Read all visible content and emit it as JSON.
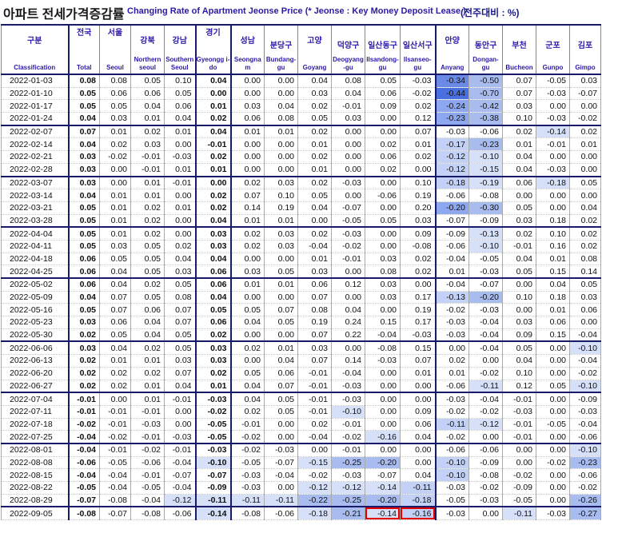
{
  "title": {
    "korean": "아파트 전세가격증감률",
    "english": "Changing Rate of Apartment Jeonse Price (* Jeonse : Key Money Deposit Lease )",
    "unit": "(전주대비 : %)"
  },
  "columns": [
    {
      "ko": "구분",
      "en": "Classification"
    },
    {
      "ko": "전국",
      "en": "Total"
    },
    {
      "ko": "서울",
      "en": "Seoul"
    },
    {
      "ko": "강북",
      "en": "Northern seoul"
    },
    {
      "ko": "강남",
      "en": "Southern Seoul"
    },
    {
      "ko": "경기",
      "en": "Gyeongg i-do"
    },
    {
      "ko": "성남",
      "en": "Seongna m"
    },
    {
      "ko": "분당구",
      "en": "Bundang-gu"
    },
    {
      "ko": "고양",
      "en": "Goyang"
    },
    {
      "ko": "덕양구",
      "en": "Deogyang -gu"
    },
    {
      "ko": "일산동구",
      "en": "Ilsandong-gu"
    },
    {
      "ko": "일산서구",
      "en": "Ilsanseo-gu"
    },
    {
      "ko": "안양",
      "en": "Anyang"
    },
    {
      "ko": "동안구",
      "en": "Dongan-gu"
    },
    {
      "ko": "부천",
      "en": "Bucheon"
    },
    {
      "ko": "군포",
      "en": "Gunpo"
    },
    {
      "ko": "김포",
      "en": "Gimpo"
    }
  ],
  "rows": [
    {
      "date": "2022-01-03",
      "values": [
        "0.08",
        "0.08",
        "0.05",
        "0.10",
        "0.04",
        "0.00",
        "0.00",
        "0.04",
        "0.08",
        "0.05",
        "-0.03",
        "-0.34",
        "-0.50",
        "0.07",
        "-0.05",
        "0.03"
      ]
    },
    {
      "date": "2022-01-10",
      "values": [
        "0.05",
        "0.06",
        "0.06",
        "0.05",
        "0.00",
        "0.00",
        "0.00",
        "0.03",
        "0.04",
        "0.06",
        "-0.02",
        "-0.44",
        "-0.70",
        "0.07",
        "-0.03",
        "-0.07"
      ]
    },
    {
      "date": "2022-01-17",
      "values": [
        "0.05",
        "0.05",
        "0.04",
        "0.06",
        "0.01",
        "0.03",
        "0.04",
        "0.02",
        "-0.01",
        "0.09",
        "0.02",
        "-0.24",
        "-0.42",
        "0.03",
        "0.00",
        "0.00"
      ]
    },
    {
      "date": "2022-01-24",
      "values": [
        "0.04",
        "0.03",
        "0.01",
        "0.04",
        "0.02",
        "0.06",
        "0.08",
        "0.05",
        "0.03",
        "0.00",
        "0.12",
        "-0.23",
        "-0.38",
        "0.10",
        "-0.03",
        "-0.02"
      ]
    },
    {
      "date": "2022-02-07",
      "values": [
        "0.07",
        "0.01",
        "0.02",
        "0.01",
        "0.04",
        "0.01",
        "0.01",
        "0.02",
        "0.00",
        "0.00",
        "0.07",
        "-0.03",
        "-0.06",
        "0.02",
        "-0.14",
        "0.02"
      ]
    },
    {
      "date": "2022-02-14",
      "values": [
        "0.04",
        "0.02",
        "0.03",
        "0.00",
        "-0.01",
        "0.00",
        "0.00",
        "0.01",
        "0.00",
        "0.02",
        "0.01",
        "-0.17",
        "-0.23",
        "0.01",
        "-0.01",
        "0.01"
      ]
    },
    {
      "date": "2022-02-21",
      "values": [
        "0.03",
        "-0.02",
        "-0.01",
        "-0.03",
        "0.02",
        "0.00",
        "0.00",
        "0.02",
        "0.00",
        "0.06",
        "0.02",
        "-0.12",
        "-0.10",
        "0.04",
        "0.00",
        "0.00"
      ]
    },
    {
      "date": "2022-02-28",
      "values": [
        "0.03",
        "0.00",
        "-0.01",
        "0.01",
        "0.01",
        "0.00",
        "0.00",
        "0.01",
        "0.00",
        "0.02",
        "0.00",
        "-0.12",
        "-0.15",
        "0.04",
        "-0.03",
        "0.00"
      ]
    },
    {
      "date": "2022-03-07",
      "values": [
        "0.03",
        "0.00",
        "0.01",
        "-0.01",
        "0.00",
        "0.02",
        "0.03",
        "0.02",
        "-0.03",
        "0.00",
        "0.10",
        "-0.18",
        "-0.19",
        "0.06",
        "-0.18",
        "0.05"
      ]
    },
    {
      "date": "2022-03-14",
      "values": [
        "0.04",
        "0.01",
        "0.01",
        "0.00",
        "0.02",
        "0.07",
        "0.10",
        "0.05",
        "0.00",
        "-0.06",
        "0.19",
        "-0.06",
        "-0.08",
        "0.00",
        "0.00",
        "0.00"
      ]
    },
    {
      "date": "2022-03-21",
      "values": [
        "0.05",
        "0.01",
        "0.02",
        "0.01",
        "0.02",
        "0.14",
        "0.19",
        "0.04",
        "-0.07",
        "0.00",
        "0.20",
        "-0.20",
        "-0.30",
        "0.05",
        "0.00",
        "0.04"
      ]
    },
    {
      "date": "2022-03-28",
      "values": [
        "0.05",
        "0.01",
        "0.02",
        "0.00",
        "0.04",
        "0.01",
        "0.01",
        "0.00",
        "-0.05",
        "0.05",
        "0.03",
        "-0.07",
        "-0.09",
        "0.03",
        "0.18",
        "0.02"
      ]
    },
    {
      "date": "2022-04-04",
      "values": [
        "0.05",
        "0.01",
        "0.02",
        "0.00",
        "0.03",
        "0.02",
        "0.03",
        "0.02",
        "-0.03",
        "0.00",
        "0.09",
        "-0.09",
        "-0.13",
        "0.02",
        "0.10",
        "0.02"
      ]
    },
    {
      "date": "2022-04-11",
      "values": [
        "0.05",
        "0.03",
        "0.05",
        "0.02",
        "0.03",
        "0.02",
        "0.03",
        "-0.04",
        "-0.02",
        "0.00",
        "-0.08",
        "-0.06",
        "-0.10",
        "-0.01",
        "0.16",
        "0.02"
      ]
    },
    {
      "date": "2022-04-18",
      "values": [
        "0.06",
        "0.05",
        "0.05",
        "0.04",
        "0.04",
        "0.00",
        "0.00",
        "0.01",
        "-0.01",
        "0.03",
        "0.02",
        "-0.04",
        "-0.05",
        "0.04",
        "0.01",
        "0.08"
      ]
    },
    {
      "date": "2022-04-25",
      "values": [
        "0.06",
        "0.04",
        "0.05",
        "0.03",
        "0.06",
        "0.03",
        "0.05",
        "0.03",
        "0.00",
        "0.08",
        "0.02",
        "0.01",
        "-0.03",
        "0.05",
        "0.15",
        "0.14"
      ]
    },
    {
      "date": "2022-05-02",
      "values": [
        "0.06",
        "0.04",
        "0.02",
        "0.05",
        "0.06",
        "0.01",
        "0.01",
        "0.06",
        "0.12",
        "0.03",
        "0.00",
        "-0.04",
        "-0.07",
        "0.00",
        "0.04",
        "0.05"
      ]
    },
    {
      "date": "2022-05-09",
      "values": [
        "0.04",
        "0.07",
        "0.05",
        "0.08",
        "0.04",
        "0.00",
        "0.00",
        "0.07",
        "0.00",
        "0.03",
        "0.17",
        "-0.13",
        "-0.20",
        "0.10",
        "0.18",
        "0.03"
      ]
    },
    {
      "date": "2022-05-16",
      "values": [
        "0.05",
        "0.07",
        "0.06",
        "0.07",
        "0.05",
        "0.05",
        "0.07",
        "0.08",
        "0.04",
        "0.00",
        "0.19",
        "-0.02",
        "-0.03",
        "0.00",
        "0.01",
        "0.06"
      ]
    },
    {
      "date": "2022-05-23",
      "values": [
        "0.03",
        "0.06",
        "0.04",
        "0.07",
        "0.06",
        "0.04",
        "0.05",
        "0.19",
        "0.24",
        "0.15",
        "0.17",
        "-0.03",
        "-0.04",
        "0.03",
        "0.06",
        "0.00"
      ]
    },
    {
      "date": "2022-05-30",
      "values": [
        "0.02",
        "0.05",
        "0.04",
        "0.05",
        "0.02",
        "0.00",
        "0.00",
        "0.07",
        "0.22",
        "-0.04",
        "-0.03",
        "-0.03",
        "-0.04",
        "0.09",
        "0.15",
        "-0.04"
      ]
    },
    {
      "date": "2022-06-06",
      "values": [
        "0.03",
        "0.04",
        "0.02",
        "0.05",
        "0.03",
        "0.02",
        "0.01",
        "0.03",
        "0.00",
        "-0.08",
        "0.15",
        "0.00",
        "-0.04",
        "0.05",
        "0.00",
        "-0.10"
      ]
    },
    {
      "date": "2022-06-13",
      "values": [
        "0.02",
        "0.01",
        "0.01",
        "0.03",
        "0.03",
        "0.00",
        "0.04",
        "0.07",
        "0.14",
        "-0.03",
        "0.07",
        "0.02",
        "0.00",
        "0.04",
        "0.00",
        "-0.04"
      ]
    },
    {
      "date": "2022-06-20",
      "values": [
        "0.02",
        "0.02",
        "0.02",
        "0.07",
        "0.02",
        "0.05",
        "0.06",
        "-0.01",
        "-0.04",
        "0.00",
        "0.01",
        "0.01",
        "-0.02",
        "0.10",
        "0.00",
        "-0.02"
      ]
    },
    {
      "date": "2022-06-27",
      "values": [
        "0.02",
        "0.02",
        "0.01",
        "0.04",
        "0.01",
        "0.04",
        "0.07",
        "-0.01",
        "-0.03",
        "0.00",
        "0.00",
        "-0.06",
        "-0.11",
        "0.12",
        "0.05",
        "-0.10"
      ]
    },
    {
      "date": "2022-07-04",
      "values": [
        "-0.01",
        "0.00",
        "0.01",
        "-0.01",
        "-0.03",
        "0.04",
        "0.05",
        "-0.01",
        "-0.03",
        "0.00",
        "0.00",
        "-0.03",
        "-0.04",
        "-0.01",
        "0.00",
        "-0.09"
      ]
    },
    {
      "date": "2022-07-11",
      "values": [
        "-0.01",
        "-0.01",
        "-0.01",
        "0.00",
        "-0.02",
        "0.02",
        "0.05",
        "-0.01",
        "-0.10",
        "0.00",
        "0.09",
        "-0.02",
        "-0.02",
        "-0.03",
        "0.00",
        "-0.03"
      ]
    },
    {
      "date": "2022-07-18",
      "values": [
        "-0.02",
        "-0.01",
        "-0.03",
        "0.00",
        "-0.05",
        "-0.01",
        "0.00",
        "0.02",
        "-0.01",
        "0.00",
        "0.06",
        "-0.11",
        "-0.12",
        "-0.01",
        "-0.05",
        "-0.04"
      ]
    },
    {
      "date": "2022-07-25",
      "values": [
        "-0.04",
        "-0.02",
        "-0.01",
        "-0.03",
        "-0.05",
        "-0.02",
        "0.00",
        "-0.04",
        "-0.02",
        "-0.16",
        "0.04",
        "-0.02",
        "0.00",
        "-0.01",
        "0.00",
        "-0.06"
      ]
    },
    {
      "date": "2022-08-01",
      "values": [
        "-0.04",
        "-0.01",
        "-0.02",
        "-0.01",
        "-0.03",
        "-0.02",
        "-0.03",
        "0.00",
        "-0.01",
        "0.00",
        "0.00",
        "-0.06",
        "-0.06",
        "0.00",
        "0.00",
        "-0.10"
      ]
    },
    {
      "date": "2022-08-08",
      "values": [
        "-0.06",
        "-0.05",
        "-0.06",
        "-0.04",
        "-0.10",
        "-0.05",
        "-0.07",
        "-0.15",
        "-0.25",
        "-0.20",
        "0.00",
        "-0.10",
        "-0.09",
        "0.00",
        "-0.02",
        "-0.23"
      ]
    },
    {
      "date": "2022-08-15",
      "values": [
        "-0.04",
        "-0.04",
        "-0.01",
        "-0.07",
        "-0.07",
        "-0.03",
        "-0.04",
        "-0.02",
        "-0.03",
        "-0.07",
        "0.04",
        "-0.10",
        "-0.08",
        "-0.02",
        "0.00",
        "-0.06"
      ]
    },
    {
      "date": "2022-08-22",
      "values": [
        "-0.05",
        "-0.04",
        "-0.05",
        "-0.04",
        "-0.09",
        "-0.03",
        "0.00",
        "-0.12",
        "-0.12",
        "-0.14",
        "-0.11",
        "-0.03",
        "-0.02",
        "-0.09",
        "0.00",
        "-0.02"
      ]
    },
    {
      "date": "2022-08-29",
      "values": [
        "-0.07",
        "-0.08",
        "-0.04",
        "-0.12",
        "-0.11",
        "-0.11",
        "-0.11",
        "-0.22",
        "-0.25",
        "-0.20",
        "-0.18",
        "-0.05",
        "-0.03",
        "-0.05",
        "0.00",
        "-0.26"
      ]
    },
    {
      "date": "2022-09-05",
      "values": [
        "-0.08",
        "-0.07",
        "-0.08",
        "-0.06",
        "-0.14",
        "-0.08",
        "-0.06",
        "-0.18",
        "-0.21",
        "-0.14",
        "-0.16",
        "-0.03",
        "0.00",
        "-0.11",
        "-0.03",
        "-0.27"
      ]
    }
  ],
  "colors": {
    "title_english": "#2a1aa8",
    "header_text": "#2a1aa8",
    "negative_strong": "#4169e1",
    "positive_highlight": "#fbd98a",
    "red_box": "#e00000"
  },
  "highlighted_cells": [
    {
      "date": "2022-09-05",
      "column": "Ilsandong-gu"
    },
    {
      "date": "2022-09-05",
      "column": "Ilsanseo-gu"
    }
  ]
}
